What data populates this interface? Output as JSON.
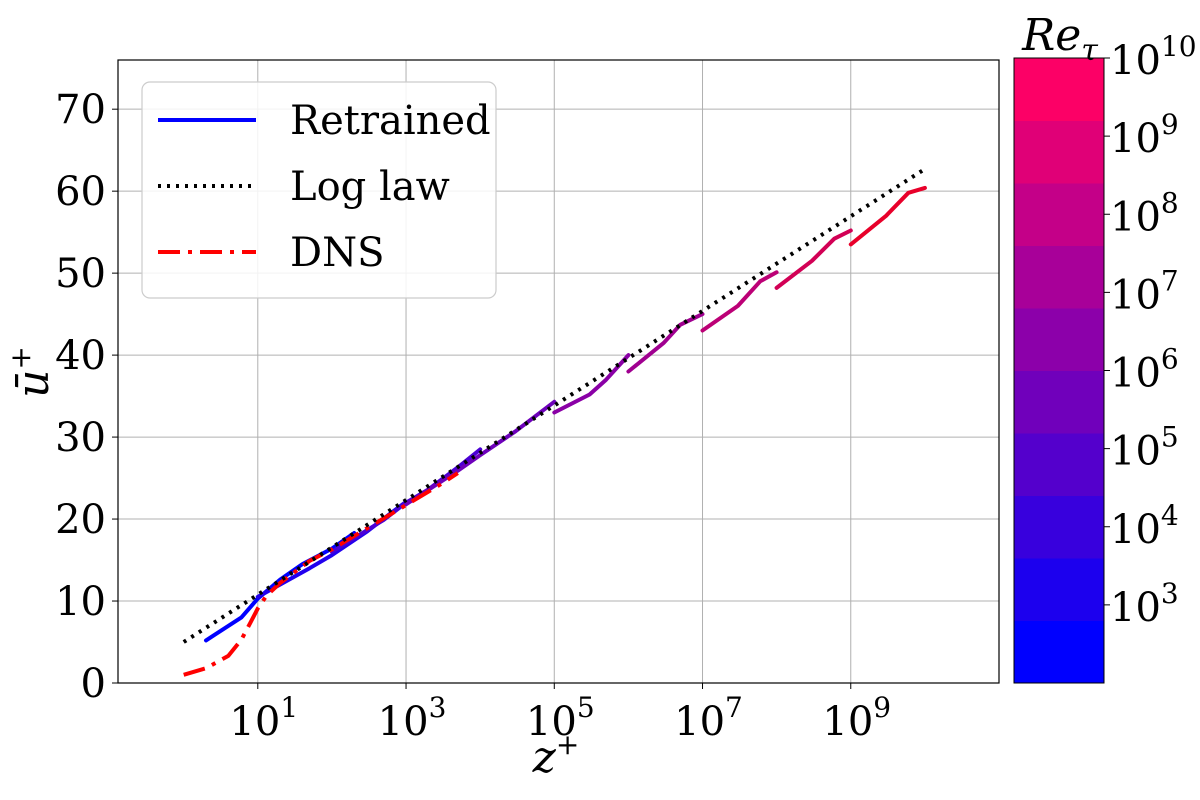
{
  "chart_data": {
    "type": "line",
    "xlabel": "z+",
    "ylabel": "ū+",
    "xscale": "log",
    "xlim": [
      0.13,
      100000000000
    ],
    "ylim": [
      0,
      76
    ],
    "grid": true,
    "legend": {
      "placement": "top-left",
      "entries": [
        {
          "label": "Retrained",
          "color": "#0000ff",
          "style": "solid"
        },
        {
          "label": "Log law",
          "color": "#000000",
          "style": "dotted"
        },
        {
          "label": "DNS",
          "color": "#ff0000",
          "style": "dashdot"
        }
      ]
    },
    "x_ticks": [
      {
        "value": 10,
        "base": "10",
        "exp": "1"
      },
      {
        "value": 1000,
        "base": "10",
        "exp": "3"
      },
      {
        "value": 100000,
        "base": "10",
        "exp": "5"
      },
      {
        "value": 10000000,
        "base": "10",
        "exp": "7"
      },
      {
        "value": 1000000000,
        "base": "10",
        "exp": "9"
      }
    ],
    "y_ticks": [
      0,
      10,
      20,
      30,
      40,
      50,
      60,
      70
    ],
    "colorbar": {
      "title": "Re",
      "title_sub": "τ",
      "scale": "log",
      "range": [
        100,
        10000000000
      ],
      "ticks": [
        {
          "value": 1000,
          "base": "10",
          "exp": "3"
        },
        {
          "value": 10000,
          "base": "10",
          "exp": "4"
        },
        {
          "value": 100000,
          "base": "10",
          "exp": "5"
        },
        {
          "value": 1000000,
          "base": "10",
          "exp": "6"
        },
        {
          "value": 10000000,
          "base": "10",
          "exp": "7"
        },
        {
          "value": 100000000,
          "base": "10",
          "exp": "8"
        },
        {
          "value": 1000000000,
          "base": "10",
          "exp": "9"
        },
        {
          "value": 10000000000,
          "base": "10",
          "exp": "10"
        }
      ],
      "bands": [
        "#0000ff",
        "#1c00ee",
        "#3800dd",
        "#5400cc",
        "#7000bb",
        "#8c00aa",
        "#a80099",
        "#c40088",
        "#e00077",
        "#fc0066"
      ]
    },
    "log_law": {
      "name": "Log law",
      "color": "#000000",
      "points": [
        [
          1,
          5.0
        ],
        [
          10000000000,
          62.7
        ]
      ]
    },
    "dns": {
      "name": "DNS",
      "color": "#ff0000",
      "points": [
        [
          1,
          1.0
        ],
        [
          2,
          1.8
        ],
        [
          4,
          3.3
        ],
        [
          6,
          5.3
        ],
        [
          8,
          7.4
        ],
        [
          10,
          9.1
        ],
        [
          13,
          10.6
        ],
        [
          20,
          12.2
        ],
        [
          50,
          14.9
        ],
        [
          100,
          16.3
        ],
        [
          300,
          18.9
        ],
        [
          1000,
          21.7
        ],
        [
          3000,
          24.3
        ],
        [
          5000,
          25.6
        ]
      ]
    },
    "series": [
      {
        "name": "Re_tau 2e2",
        "color": "#0000ff",
        "points": [
          [
            2,
            5.2
          ],
          [
            6,
            8.0
          ],
          [
            10,
            10.3
          ],
          [
            20,
            12.6
          ],
          [
            40,
            14.5
          ],
          [
            100,
            16.4
          ],
          [
            200,
            18.3
          ]
        ]
      },
      {
        "name": "Re_tau 1e3",
        "color": "#2200ee",
        "points": [
          [
            10,
            10.5
          ],
          [
            50,
            14.0
          ],
          [
            100,
            15.6
          ],
          [
            300,
            18.5
          ],
          [
            600,
            20.6
          ],
          [
            1000,
            22.1
          ]
        ]
      },
      {
        "name": "Re_tau 1e4",
        "color": "#4b00d4",
        "points": [
          [
            100,
            16.0
          ],
          [
            500,
            19.9
          ],
          [
            1000,
            22.0
          ],
          [
            2000,
            23.6
          ],
          [
            5000,
            26.3
          ],
          [
            10000,
            28.5
          ]
        ]
      },
      {
        "name": "Re_tau 1e5",
        "color": "#6e00bb",
        "points": [
          [
            1000,
            21.8
          ],
          [
            5000,
            25.9
          ],
          [
            10000,
            27.8
          ],
          [
            30000,
            30.7
          ],
          [
            100000,
            34.3
          ]
        ]
      },
      {
        "name": "Re_tau 1e6",
        "color": "#8a00a6",
        "points": [
          [
            100000,
            33.0
          ],
          [
            300000,
            35.2
          ],
          [
            500000,
            37.0
          ],
          [
            1000000,
            40.0
          ]
        ]
      },
      {
        "name": "Re_tau 1e7",
        "color": "#a00090",
        "points": [
          [
            1000000,
            38.0
          ],
          [
            3000000,
            41.5
          ],
          [
            5000000,
            43.7
          ],
          [
            10000000,
            45.0
          ]
        ]
      },
      {
        "name": "Re_tau 1e8",
        "color": "#bc0076",
        "points": [
          [
            10000000,
            43.0
          ],
          [
            30000000,
            46.0
          ],
          [
            60000000,
            49.0
          ],
          [
            100000000,
            50.1
          ]
        ]
      },
      {
        "name": "Re_tau 1e9",
        "color": "#d20055",
        "points": [
          [
            100000000,
            48.2
          ],
          [
            300000000,
            51.5
          ],
          [
            600000000,
            54.2
          ],
          [
            1000000000,
            55.2
          ]
        ]
      },
      {
        "name": "Re_tau 1e10",
        "color": "#e8002a",
        "points": [
          [
            1000000000,
            53.5
          ],
          [
            3000000000,
            57.0
          ],
          [
            6000000000,
            59.8
          ],
          [
            10000000000,
            60.4
          ]
        ]
      }
    ]
  }
}
